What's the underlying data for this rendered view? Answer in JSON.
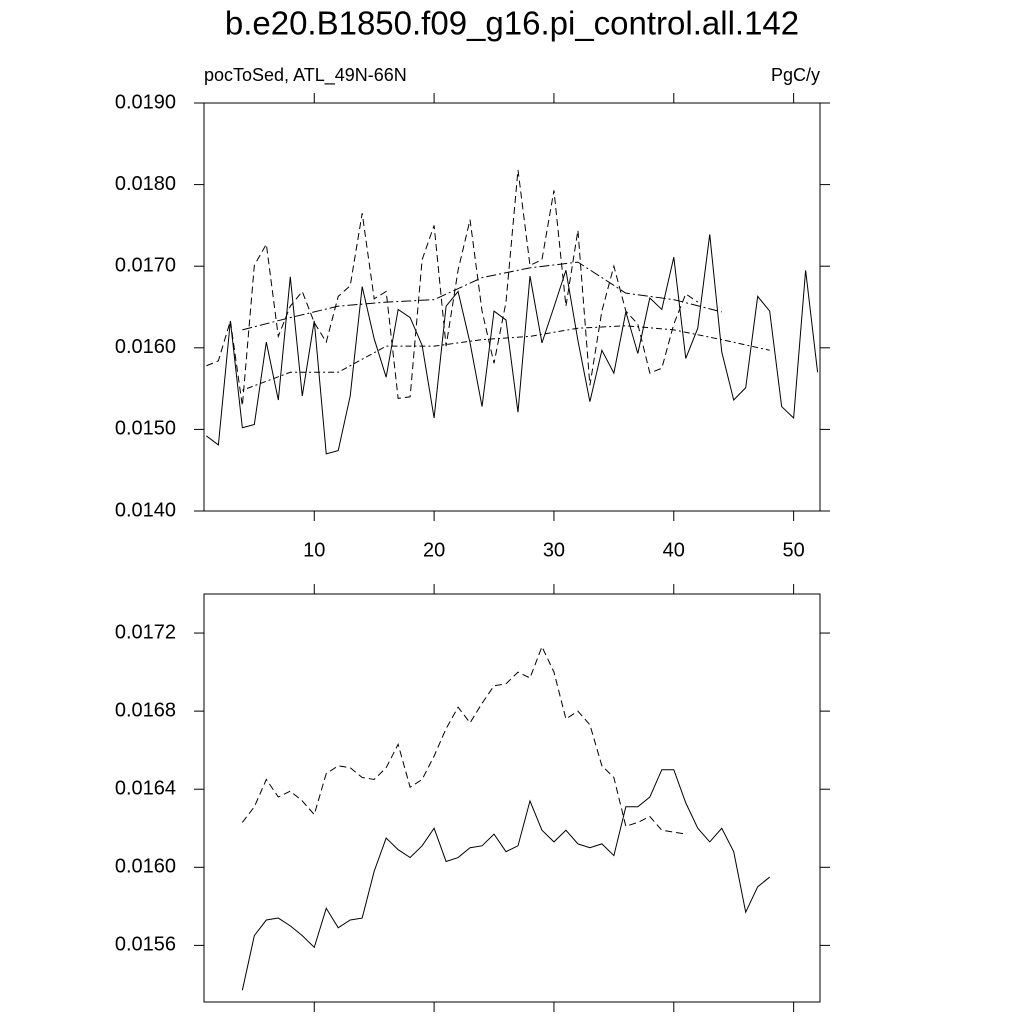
{
  "title": "b.e20.B1850.f09_g16.pi_control.all.142",
  "subtitle_left": "pocToSed, ATL_49N-66N",
  "subtitle_right": "PgC/y",
  "chart_data": [
    {
      "type": "line",
      "xlim": [
        0.8,
        52.2
      ],
      "xticks": [
        10,
        20,
        30,
        40,
        50
      ],
      "xtick_labels": true,
      "ylim": [
        0.014,
        0.019
      ],
      "yticks": [
        {
          "value": 0.014,
          "label": "0.0140"
        },
        {
          "value": 0.015,
          "label": "0.0150"
        },
        {
          "value": 0.016,
          "label": "0.0160"
        },
        {
          "value": 0.017,
          "label": "0.0170"
        },
        {
          "value": 0.018,
          "label": "0.0180"
        },
        {
          "value": 0.019,
          "label": "0.0190"
        }
      ],
      "series": [
        {
          "color": "#000000",
          "dash": "none",
          "x": [
            1,
            2,
            3,
            4,
            5,
            6,
            7,
            8,
            9,
            10,
            11,
            12,
            13,
            14,
            15,
            16,
            17,
            18,
            19,
            20,
            21,
            22,
            23,
            24,
            25,
            26,
            27,
            28,
            29,
            30,
            31,
            32,
            33,
            34,
            35,
            36,
            37,
            38,
            39,
            40,
            41,
            42,
            43,
            44,
            45,
            46,
            47,
            48,
            49,
            50,
            51,
            52
          ],
          "values": [
            0.01492,
            0.01481,
            0.01633,
            0.01502,
            0.01506,
            0.01607,
            0.01536,
            0.01687,
            0.01541,
            0.01633,
            0.0147,
            0.01474,
            0.01541,
            0.01675,
            0.01611,
            0.01564,
            0.01647,
            0.01637,
            0.01603,
            0.01514,
            0.01651,
            0.01669,
            0.01606,
            0.01528,
            0.01645,
            0.01634,
            0.01521,
            0.01688,
            0.01606,
            0.0165,
            0.01695,
            0.01609,
            0.01534,
            0.01597,
            0.01569,
            0.01644,
            0.01593,
            0.01661,
            0.01647,
            0.01711,
            0.01587,
            0.01624,
            0.01739,
            0.01595,
            0.01536,
            0.01551,
            0.01663,
            0.01645,
            0.01528,
            0.01514,
            0.01695,
            0.0157
          ]
        },
        {
          "color": "#000000",
          "dash": "7,4",
          "x": [
            1,
            2,
            3,
            4,
            5,
            6,
            7,
            8,
            9,
            10,
            11,
            12,
            13,
            14,
            15,
            16,
            17,
            18,
            19,
            20,
            21,
            22,
            23,
            24,
            25,
            26,
            27,
            28,
            29,
            30,
            31,
            32,
            33,
            34,
            35,
            36,
            37,
            38,
            39,
            40,
            41,
            42
          ],
          "values": [
            0.01578,
            0.01584,
            0.01633,
            0.01529,
            0.01701,
            0.01727,
            0.01614,
            0.01651,
            0.01669,
            0.01631,
            0.01607,
            0.01663,
            0.01676,
            0.01765,
            0.0166,
            0.01669,
            0.01538,
            0.0154,
            0.01708,
            0.0175,
            0.01602,
            0.01695,
            0.01757,
            0.01645,
            0.01581,
            0.01656,
            0.01818,
            0.01701,
            0.01708,
            0.01793,
            0.01651,
            0.01744,
            0.01554,
            0.01645,
            0.017,
            0.01645,
            0.01629,
            0.01569,
            0.01575,
            0.01629,
            0.01666,
            0.01656
          ]
        },
        {
          "color": "#000000",
          "dash": "10,3,2,3",
          "x": [
            4,
            8,
            12,
            16,
            20,
            24,
            28,
            32,
            36,
            40,
            44
          ],
          "values": [
            0.01622,
            0.01637,
            0.01651,
            0.01656,
            0.01659,
            0.01686,
            0.01698,
            0.01705,
            0.01667,
            0.01659,
            0.01644
          ]
        },
        {
          "color": "#000000",
          "dash": "2,3,6,3",
          "x": [
            4,
            8,
            12,
            16,
            20,
            24,
            28,
            32,
            36,
            40,
            44,
            48
          ],
          "values": [
            0.01548,
            0.0157,
            0.0157,
            0.01602,
            0.01602,
            0.0161,
            0.01614,
            0.01624,
            0.01627,
            0.01622,
            0.0161,
            0.01597
          ]
        }
      ]
    },
    {
      "type": "line",
      "xlim": [
        0.8,
        52.2
      ],
      "xticks": [
        10,
        20,
        30,
        40,
        50
      ],
      "xtick_labels": false,
      "ylim": [
        0.01531,
        0.0174
      ],
      "yticks": [
        {
          "value": 0.0156,
          "label": "0.0156"
        },
        {
          "value": 0.016,
          "label": "0.0160"
        },
        {
          "value": 0.0164,
          "label": "0.0164"
        },
        {
          "value": 0.0168,
          "label": "0.0168"
        },
        {
          "value": 0.0172,
          "label": "0.0172"
        }
      ],
      "series": [
        {
          "color": "#000000",
          "dash": "none",
          "x": [
            4,
            5,
            6,
            7,
            8,
            9,
            10,
            11,
            12,
            13,
            14,
            15,
            16,
            17,
            18,
            19,
            20,
            21,
            22,
            23,
            24,
            25,
            26,
            27,
            28,
            29,
            30,
            31,
            32,
            33,
            34,
            35,
            36,
            37,
            38,
            39,
            40,
            41,
            42,
            43,
            44,
            45,
            46,
            47,
            48
          ],
          "values": [
            0.01537,
            0.01565,
            0.01573,
            0.01574,
            0.0157,
            0.01565,
            0.01559,
            0.01579,
            0.01569,
            0.01573,
            0.01574,
            0.01598,
            0.01615,
            0.01609,
            0.01605,
            0.01611,
            0.0162,
            0.01603,
            0.01605,
            0.0161,
            0.01611,
            0.01617,
            0.01608,
            0.01611,
            0.01634,
            0.01619,
            0.01613,
            0.01619,
            0.01612,
            0.0161,
            0.01612,
            0.01606,
            0.01631,
            0.01631,
            0.01636,
            0.0165,
            0.0165,
            0.01633,
            0.0162,
            0.01613,
            0.0162,
            0.01608,
            0.01577,
            0.0159,
            0.01595
          ]
        },
        {
          "color": "#000000",
          "dash": "7,4",
          "x": [
            4,
            5,
            6,
            7,
            8,
            9,
            10,
            11,
            12,
            13,
            14,
            15,
            16,
            17,
            18,
            19,
            20,
            21,
            22,
            23,
            24,
            25,
            26,
            27,
            28,
            29,
            30,
            31,
            32,
            33,
            34,
            35,
            36,
            37,
            38,
            39,
            40,
            41
          ],
          "values": [
            0.01623,
            0.01631,
            0.01645,
            0.01636,
            0.01639,
            0.01634,
            0.01627,
            0.01648,
            0.01652,
            0.01651,
            0.01646,
            0.01645,
            0.01651,
            0.01663,
            0.01641,
            0.01645,
            0.01657,
            0.01671,
            0.01682,
            0.01674,
            0.01684,
            0.01693,
            0.01694,
            0.017,
            0.01697,
            0.01713,
            0.017,
            0.01676,
            0.0168,
            0.01673,
            0.01652,
            0.01646,
            0.01621,
            0.01623,
            0.01626,
            0.01619,
            0.01618,
            0.01617
          ]
        }
      ]
    }
  ]
}
